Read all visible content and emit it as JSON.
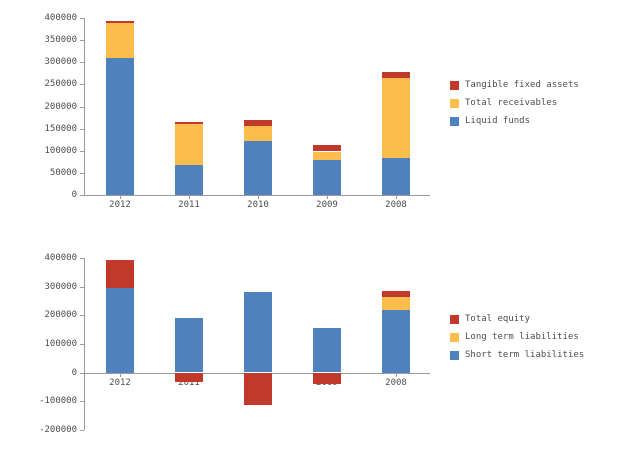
{
  "page": {
    "background": "#ffffff",
    "text_color": "#4d4d4d",
    "axis_color": "#9a9a9a"
  },
  "chart_data": [
    {
      "name": "assets-chart",
      "type": "bar",
      "stacked": true,
      "grid": false,
      "legend_position": "right",
      "categories": [
        "2012",
        "2011",
        "2010",
        "2009",
        "2008"
      ],
      "series": [
        {
          "name": "Liquid funds",
          "color": "#4f81bd",
          "values": [
            310000,
            68000,
            124000,
            80000,
            84000
          ]
        },
        {
          "name": "Total receivables",
          "color": "#fdbd4d",
          "values": [
            78000,
            92000,
            33000,
            18000,
            181000
          ]
        },
        {
          "name": "Tangible fixed assets",
          "color": "#c0392b",
          "values": [
            5000,
            5000,
            13000,
            14000,
            14000
          ]
        }
      ],
      "y_min": 0,
      "y_max": 400000,
      "y_step": 50000,
      "y_tick_labels": [
        "0",
        "50000",
        "100000",
        "150000",
        "200000",
        "250000",
        "300000",
        "350000",
        "400000"
      ],
      "legend": [
        {
          "label": "Tangible fixed assets",
          "color": "#c0392b"
        },
        {
          "label": "Total receivables",
          "color": "#fdbd4d"
        },
        {
          "label": "Liquid funds",
          "color": "#4f81bd"
        }
      ]
    },
    {
      "name": "equity-liabilities-chart",
      "type": "bar",
      "stacked": true,
      "grid": false,
      "legend_position": "right",
      "categories": [
        "2012",
        "2011",
        "2010",
        "2009",
        "2008"
      ],
      "series": [
        {
          "name": "Short term liabilities",
          "color": "#4f81bd",
          "values": [
            295000,
            190000,
            280000,
            155000,
            220000
          ]
        },
        {
          "name": "Long term liabilities",
          "color": "#fdbd4d",
          "values": [
            0,
            0,
            0,
            0,
            45000
          ]
        },
        {
          "name": "Total equity",
          "color": "#c0392b",
          "values": [
            98000,
            -30000,
            -110000,
            -40000,
            20000
          ]
        }
      ],
      "y_min": -200000,
      "y_max": 400000,
      "y_step": 100000,
      "y_tick_labels": [
        "-200000",
        "-100000",
        "0",
        "100000",
        "200000",
        "300000",
        "400000"
      ],
      "legend": [
        {
          "label": "Total equity",
          "color": "#c0392b"
        },
        {
          "label": "Long term liabilities",
          "color": "#fdbd4d"
        },
        {
          "label": "Short term liabilities",
          "color": "#4f81bd"
        }
      ]
    }
  ]
}
